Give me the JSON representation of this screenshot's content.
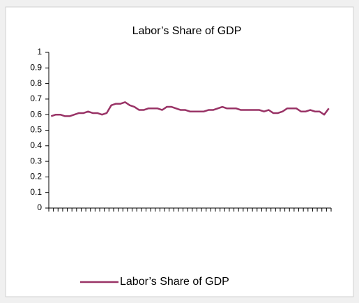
{
  "chart_data": {
    "type": "line",
    "title": "Labor’s Share of GDP",
    "categories": [
      null,
      null,
      null,
      null,
      null,
      null,
      null,
      null,
      null,
      null,
      null,
      null,
      null,
      null,
      null,
      null,
      null,
      null,
      null,
      null,
      null,
      null,
      null,
      null,
      null,
      null,
      null,
      null,
      null,
      null,
      null,
      null,
      null,
      null,
      null,
      null,
      null,
      null,
      null,
      null,
      null,
      null,
      null,
      null,
      null,
      null,
      null,
      null,
      null,
      null,
      null,
      null,
      null,
      null,
      null,
      null,
      null,
      null,
      null,
      null,
      null
    ],
    "series": [
      {
        "name": "Labor’s Share of GDP",
        "color": "#993366",
        "values": [
          0.59,
          0.6,
          0.6,
          0.59,
          0.59,
          0.6,
          0.61,
          0.61,
          0.62,
          0.61,
          0.61,
          0.6,
          0.61,
          0.66,
          0.67,
          0.67,
          0.68,
          0.66,
          0.65,
          0.63,
          0.63,
          0.64,
          0.64,
          0.64,
          0.63,
          0.65,
          0.65,
          0.64,
          0.63,
          0.63,
          0.62,
          0.62,
          0.62,
          0.62,
          0.63,
          0.63,
          0.64,
          0.65,
          0.64,
          0.64,
          0.64,
          0.63,
          0.63,
          0.63,
          0.63,
          0.63,
          0.62,
          0.63,
          0.61,
          0.61,
          0.62,
          0.64,
          0.64,
          0.64,
          0.62,
          0.62,
          0.63,
          0.62,
          0.62,
          0.6,
          0.64
        ]
      }
    ],
    "ylim": [
      0,
      1
    ],
    "yticks": [
      0,
      0.1,
      0.2,
      0.3,
      0.4,
      0.5,
      0.6,
      0.7,
      0.8,
      0.9,
      1
    ],
    "grid": false,
    "legend": "bottom"
  }
}
